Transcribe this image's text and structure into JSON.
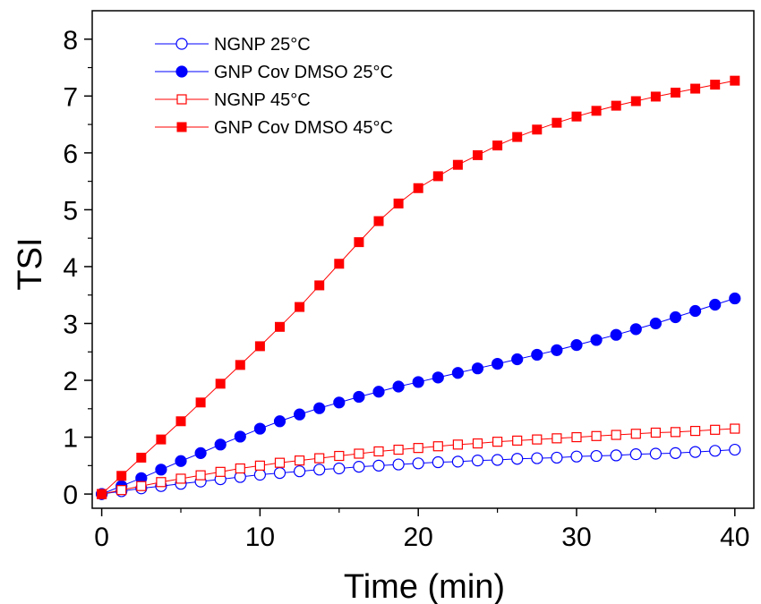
{
  "chart_data": {
    "type": "scatter",
    "title": "",
    "xlabel": "Time (min)",
    "ylabel": "TSI",
    "xlim": [
      -0.6,
      41.2
    ],
    "ylim": [
      -0.25,
      8.5
    ],
    "x_ticks": [
      0,
      10,
      20,
      30,
      40
    ],
    "y_ticks": [
      0,
      1,
      2,
      3,
      4,
      5,
      6,
      7,
      8
    ],
    "grid": false,
    "legend_position": "top-left",
    "x": [
      0,
      1.25,
      2.5,
      3.75,
      5,
      6.25,
      7.5,
      8.75,
      10,
      11.25,
      12.5,
      13.75,
      15,
      16.25,
      17.5,
      18.75,
      20,
      21.25,
      22.5,
      23.75,
      25,
      26.25,
      27.5,
      28.75,
      30,
      31.25,
      32.5,
      33.75,
      35,
      36.25,
      37.5,
      38.75,
      40
    ],
    "series": [
      {
        "name": "NGNP 25°C",
        "color": "#0000ff",
        "marker": "open-circle",
        "values": [
          0.0,
          0.05,
          0.1,
          0.14,
          0.18,
          0.22,
          0.26,
          0.3,
          0.34,
          0.37,
          0.4,
          0.43,
          0.45,
          0.48,
          0.5,
          0.52,
          0.54,
          0.56,
          0.57,
          0.59,
          0.6,
          0.62,
          0.63,
          0.64,
          0.66,
          0.67,
          0.68,
          0.7,
          0.71,
          0.72,
          0.74,
          0.76,
          0.78
        ]
      },
      {
        "name": "GNP Cov DMSO 25°C",
        "color": "#0000ff",
        "marker": "filled-circle",
        "values": [
          0.0,
          0.14,
          0.28,
          0.43,
          0.58,
          0.72,
          0.87,
          1.01,
          1.15,
          1.28,
          1.4,
          1.51,
          1.61,
          1.71,
          1.8,
          1.89,
          1.97,
          2.05,
          2.13,
          2.21,
          2.29,
          2.37,
          2.45,
          2.53,
          2.62,
          2.71,
          2.8,
          2.9,
          3.0,
          3.11,
          3.22,
          3.33,
          3.44
        ]
      },
      {
        "name": "NGNP 45°C",
        "color": "#ff0000",
        "marker": "open-square",
        "values": [
          0.0,
          0.07,
          0.14,
          0.21,
          0.27,
          0.33,
          0.39,
          0.45,
          0.5,
          0.55,
          0.59,
          0.63,
          0.67,
          0.71,
          0.75,
          0.78,
          0.81,
          0.84,
          0.87,
          0.89,
          0.92,
          0.94,
          0.96,
          0.98,
          1.0,
          1.02,
          1.04,
          1.06,
          1.08,
          1.09,
          1.11,
          1.13,
          1.15
        ]
      },
      {
        "name": "GNP Cov DMSO 45°C",
        "color": "#ff0000",
        "marker": "filled-square",
        "values": [
          0.0,
          0.32,
          0.64,
          0.96,
          1.28,
          1.61,
          1.94,
          2.27,
          2.6,
          2.94,
          3.29,
          3.67,
          4.05,
          4.43,
          4.8,
          5.11,
          5.38,
          5.59,
          5.79,
          5.96,
          6.13,
          6.28,
          6.41,
          6.53,
          6.64,
          6.74,
          6.83,
          6.91,
          6.99,
          7.06,
          7.13,
          7.2,
          7.27
        ]
      }
    ]
  }
}
